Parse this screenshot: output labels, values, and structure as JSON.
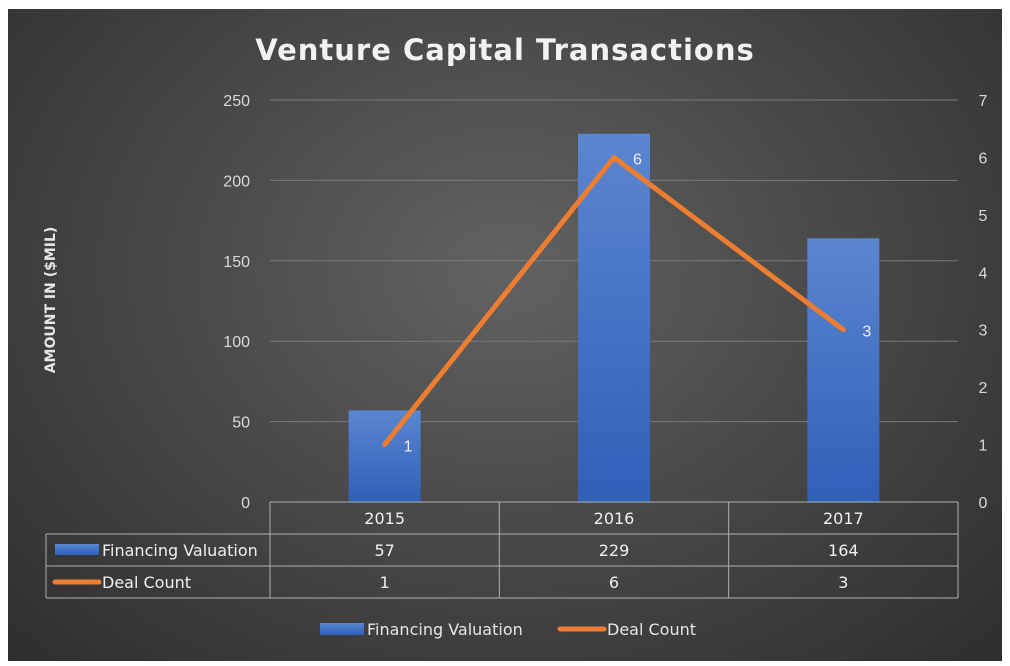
{
  "chart_data": {
    "type": "bar",
    "title": "Venture Capital Transactions",
    "ylabel": "AMOUNT IN ($MIL)",
    "categories": [
      "2015",
      "2016",
      "2017"
    ],
    "ylim": [
      0,
      250
    ],
    "y_ticks": [
      0,
      50,
      100,
      150,
      200,
      250
    ],
    "y2lim": [
      0,
      7
    ],
    "y2_ticks": [
      0,
      1,
      2,
      3,
      4,
      5,
      6,
      7
    ],
    "grid": true,
    "legend_position": "bottom",
    "data_table": true,
    "series": [
      {
        "name": "Financing Valuation",
        "type": "bar",
        "axis": "primary",
        "values": [
          57,
          229,
          164
        ],
        "color": "#4472c4"
      },
      {
        "name": "Deal Count",
        "type": "line",
        "axis": "secondary",
        "values": [
          1,
          6,
          3
        ],
        "color": "#ed7d31",
        "data_labels": true
      }
    ]
  }
}
